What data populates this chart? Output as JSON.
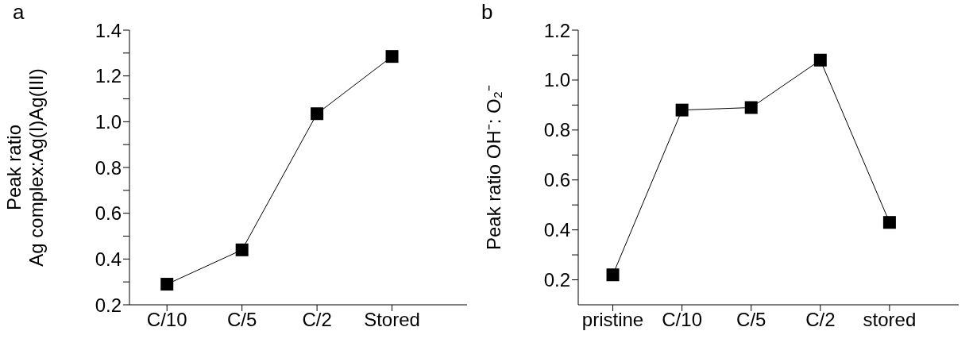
{
  "chart_data": [
    {
      "type": "line",
      "title": "a",
      "ylabel": "Peak ratio\nAg complex:Ag(I)Ag(III)",
      "categories": [
        "C/10",
        "C/5",
        "C/2",
        "Stored"
      ],
      "series": [
        {
          "color": "#000000",
          "values": [
            0.29,
            0.44,
            1.035,
            1.285
          ]
        }
      ],
      "ylim": [
        0.2,
        1.4
      ],
      "yticks": [
        0.2,
        {
          "value": 0.3,
          "label": null
        },
        0.4,
        {
          "value": 0.5,
          "label": null
        },
        0.6,
        {
          "value": 0.7,
          "label": null
        },
        0.8,
        {
          "value": 0.9,
          "label": null
        },
        {
          "value": 1,
          "label": "1.0"
        },
        {
          "value": 1.1,
          "label": null
        },
        1.2,
        {
          "value": 1.3,
          "label": null
        },
        1.4
      ],
      "grid": false,
      "legend": false,
      "marker": "square",
      "line_style": "solid"
    },
    {
      "type": "line",
      "title": "b",
      "ylabel": "Peak ratio OH⁻: O₂⁻",
      "categories": [
        "pristine",
        "C/10",
        "C/5",
        "C/2",
        "stored"
      ],
      "series": [
        {
          "color": "#000000",
          "values": [
            0.22,
            0.88,
            0.89,
            1.08,
            0.43
          ]
        }
      ],
      "ylim": [
        0.1,
        1.2
      ],
      "yticks": [
        0.2,
        {
          "value": 0.3,
          "label": null
        },
        0.4,
        {
          "value": 0.5,
          "label": null
        },
        0.6,
        {
          "value": 0.7,
          "label": null
        },
        0.8,
        {
          "value": 0.9,
          "label": null
        },
        {
          "value": 1,
          "label": "1.0"
        },
        {
          "value": 1.1,
          "label": null
        },
        1.2
      ],
      "grid": false,
      "legend": false,
      "marker": "square",
      "line_style": "solid"
    }
  ]
}
